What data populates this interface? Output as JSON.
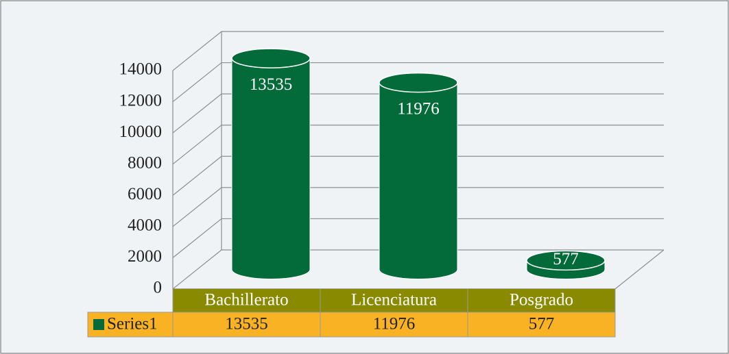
{
  "chart_data": {
    "type": "bar3d",
    "categories": [
      "Bachillerato",
      "Licenciatura",
      "Posgrado"
    ],
    "series": [
      {
        "name": "Series1",
        "color": "#036b3a",
        "values": [
          13535,
          11976,
          577
        ]
      }
    ],
    "ylim": [
      0,
      14000
    ],
    "yticks": [
      0,
      2000,
      4000,
      6000,
      8000,
      10000,
      12000,
      14000
    ],
    "grid": true,
    "data_table": true
  }
}
